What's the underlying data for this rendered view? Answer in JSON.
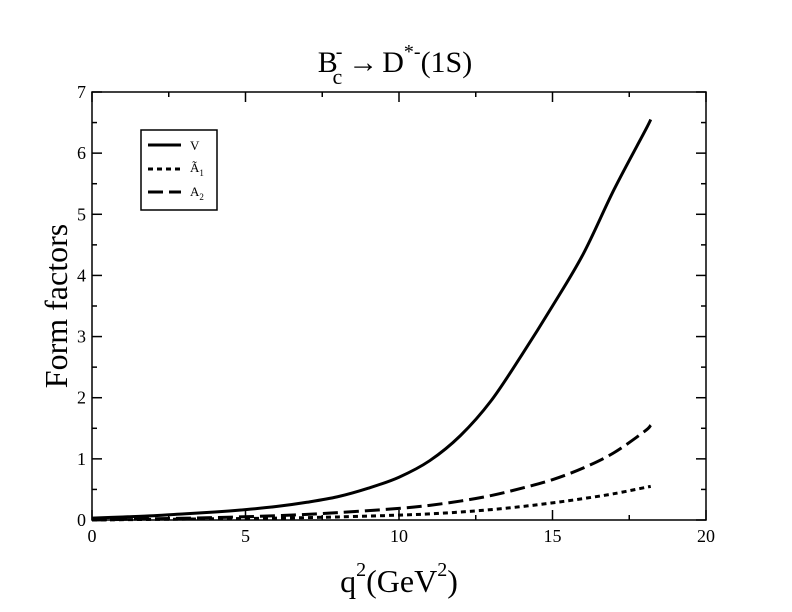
{
  "chart_data": {
    "type": "line",
    "title": {
      "b": "B",
      "b_sup": "-",
      "b_sub": "c",
      "arrow": "→",
      "d": "D",
      "d_sup": "*-",
      "state": "(1S)"
    },
    "xlabel": {
      "q": "q",
      "q_sup": "2",
      "paren_open": "(GeV",
      "gev_sup": "2",
      "paren_close": ")"
    },
    "ylabel": "Form factors",
    "xlim": [
      0,
      20
    ],
    "ylim": [
      0,
      7
    ],
    "xticks": [
      0,
      5,
      10,
      15,
      20
    ],
    "yticks": [
      0,
      1,
      2,
      3,
      4,
      5,
      6,
      7
    ],
    "grid": false,
    "legend_position": "top-left",
    "series": [
      {
        "name": "V",
        "legend": {
          "main": "V",
          "sub": ""
        },
        "line_style": "solid",
        "x": [
          0,
          1,
          2,
          3,
          4,
          5,
          6,
          7,
          8,
          9,
          10,
          11,
          12,
          13,
          14,
          15,
          16,
          17,
          18,
          18.2
        ],
        "y": [
          0.03,
          0.05,
          0.07,
          0.1,
          0.13,
          0.17,
          0.22,
          0.29,
          0.38,
          0.52,
          0.7,
          0.97,
          1.38,
          1.95,
          2.7,
          3.5,
          4.35,
          5.4,
          6.35,
          6.55
        ]
      },
      {
        "name": "Ã1",
        "legend": {
          "main": "Ã",
          "sub": "1"
        },
        "line_style": "dotted",
        "x": [
          0,
          2,
          4,
          6,
          8,
          10,
          11,
          12,
          13,
          14,
          15,
          16,
          17,
          18,
          18.2
        ],
        "y": [
          0.0,
          0.01,
          0.02,
          0.03,
          0.05,
          0.08,
          0.1,
          0.13,
          0.17,
          0.22,
          0.28,
          0.35,
          0.43,
          0.53,
          0.55
        ]
      },
      {
        "name": "A2",
        "legend": {
          "main": "A",
          "sub": "2"
        },
        "line_style": "dashed",
        "x": [
          0,
          2,
          4,
          6,
          8,
          10,
          11,
          12,
          13,
          14,
          15,
          16,
          17,
          18,
          18.2
        ],
        "y": [
          0.0,
          0.02,
          0.04,
          0.07,
          0.12,
          0.19,
          0.24,
          0.31,
          0.4,
          0.52,
          0.66,
          0.85,
          1.1,
          1.45,
          1.55
        ]
      }
    ]
  }
}
